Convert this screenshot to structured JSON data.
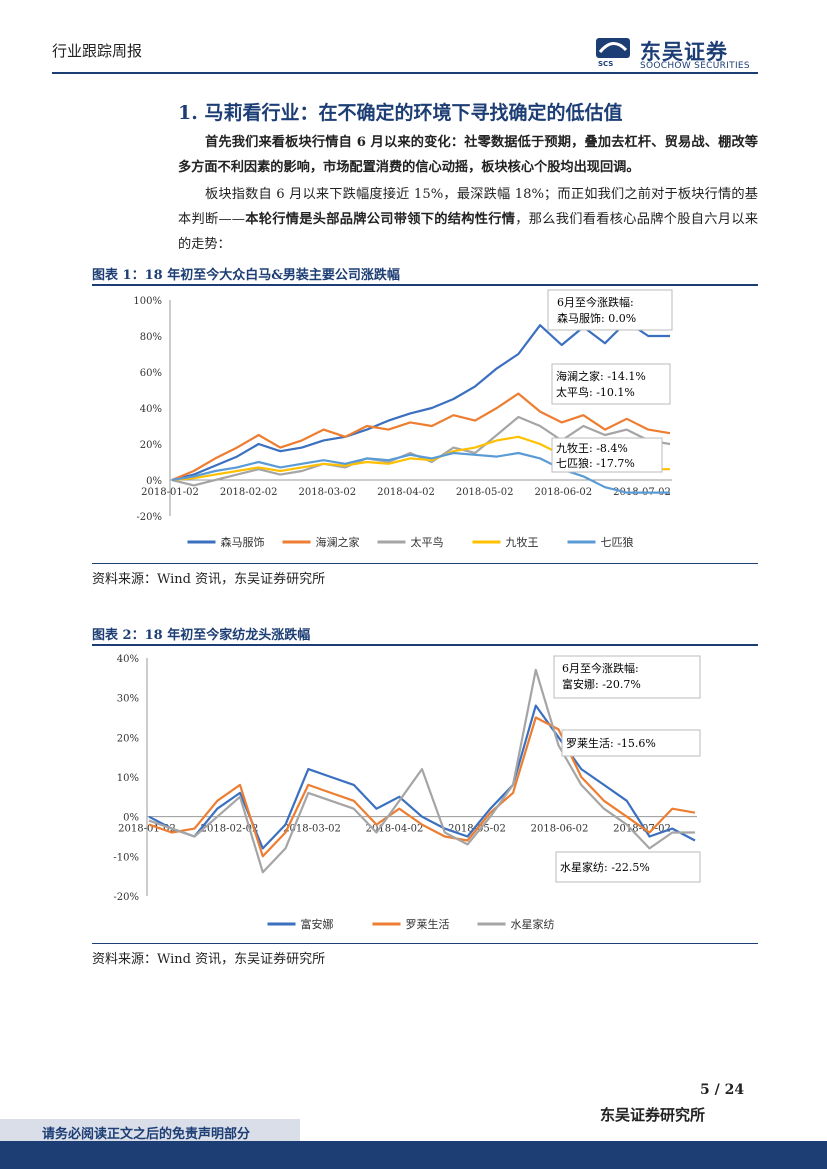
{
  "header": {
    "title": "行业跟踪周报",
    "logo_cn": "东吴证券",
    "logo_en": "SOOCHOW SECURITIES",
    "logo_abbr": "SCS"
  },
  "section": {
    "title": "1.  马莉看行业：在不确定的环境下寻找确定的低估值"
  },
  "paragraphs": {
    "p1": "首先我们来看板块行情自 6 月以来的变化：社零数据低于预期，叠加去杠杆、贸易战、棚改等多方面不利因素的影响，市场配置消费的信心动摇，板块核心个股均出现回调。",
    "p2_a": "板块指数自 6 月以来下跌幅度接近 15%，最深跌幅 18%；而正如我们之前对于板块行情的基本判断——",
    "p2_b": "本轮行情是头部品牌公司带领下的结构性行情",
    "p2_c": "，那么我们看看核心品牌个股自六月以来的走势："
  },
  "figure1": {
    "title": "图表 1：18 年初至今大众白马&男装主要公司涨跌幅",
    "source": "资料来源：Wind 资讯，东吴证券研究所",
    "annotations": {
      "box1_l1": "6月至今涨跌幅:",
      "box1_l2": "森马服饰:  0.0%",
      "box2_l1": "海澜之家:  -14.1%",
      "box2_l2": "太平鸟:  -10.1%",
      "box3_l1": "九牧王:  -8.4%",
      "box3_l2": "七匹狼:  -17.7%"
    }
  },
  "figure2": {
    "title": "图表 2：18 年初至今家纺龙头涨跌幅",
    "source": "资料来源：Wind 资讯，东吴证券研究所",
    "annotations": {
      "box1_l1": "6月至今涨跌幅:",
      "box1_l2": "富安娜:  -20.7%",
      "box2_l1": "罗莱生活:  -15.6%",
      "box3_l1": "水星家纺:  -22.5%"
    }
  },
  "chart_data": [
    {
      "type": "line",
      "x_ticks": [
        "2018-01-02",
        "2018-02-02",
        "2018-03-02",
        "2018-04-02",
        "2018-05-02",
        "2018-06-02",
        "2018-07-02"
      ],
      "y_ticks": [
        "100%",
        "80%",
        "60%",
        "40%",
        "20%",
        "0%",
        "-20%"
      ],
      "ylim": [
        -20,
        100
      ],
      "series": [
        {
          "name": "森马服饰",
          "color": "#3b6fbf",
          "values": [
            0,
            3,
            8,
            13,
            20,
            16,
            18,
            22,
            24,
            28,
            33,
            37,
            40,
            45,
            52,
            62,
            70,
            86,
            75,
            85,
            76,
            88,
            80,
            80
          ]
        },
        {
          "name": "海澜之家",
          "color": "#ed7d31",
          "values": [
            0,
            5,
            12,
            18,
            25,
            18,
            22,
            28,
            24,
            30,
            28,
            32,
            30,
            36,
            33,
            40,
            48,
            38,
            32,
            36,
            28,
            34,
            28,
            26
          ]
        },
        {
          "name": "太平鸟",
          "color": "#a5a5a5",
          "values": [
            0,
            -3,
            0,
            3,
            6,
            3,
            5,
            9,
            7,
            12,
            10,
            15,
            10,
            18,
            15,
            25,
            35,
            30,
            22,
            30,
            25,
            28,
            22,
            20
          ]
        },
        {
          "name": "九牧王",
          "color": "#ffc000",
          "values": [
            0,
            1,
            3,
            5,
            7,
            5,
            7,
            9,
            8,
            10,
            9,
            12,
            11,
            16,
            18,
            22,
            24,
            20,
            14,
            12,
            8,
            7,
            6,
            6
          ]
        },
        {
          "name": "七匹狼",
          "color": "#5b9bd5",
          "values": [
            0,
            2,
            5,
            7,
            10,
            7,
            9,
            11,
            9,
            12,
            11,
            14,
            12,
            15,
            14,
            13,
            15,
            12,
            6,
            2,
            -4,
            -7,
            -7,
            -7
          ]
        }
      ]
    },
    {
      "type": "line",
      "x_ticks": [
        "2018-01-02",
        "2018-02-02",
        "2018-03-02",
        "2018-04-02",
        "2018-05-02",
        "2018-06-02",
        "2018-07-02"
      ],
      "y_ticks": [
        "40%",
        "30%",
        "20%",
        "10%",
        "0%",
        "-10%",
        "-20%"
      ],
      "ylim": [
        -20,
        40
      ],
      "series": [
        {
          "name": "富安娜",
          "color": "#3b6fbf",
          "values": [
            0,
            -3,
            -5,
            2,
            6,
            -8,
            -2,
            12,
            10,
            8,
            2,
            5,
            0,
            -3,
            -5,
            2,
            8,
            28,
            20,
            12,
            8,
            4,
            -5,
            -3,
            -6
          ]
        },
        {
          "name": "罗莱生活",
          "color": "#ed7d31",
          "values": [
            -2,
            -4,
            -3,
            4,
            8,
            -10,
            -4,
            8,
            6,
            4,
            -2,
            2,
            -2,
            -5,
            -6,
            1,
            6,
            25,
            22,
            10,
            4,
            0,
            -4,
            2,
            1
          ]
        },
        {
          "name": "水星家纺",
          "color": "#a5a5a5",
          "values": [
            -1,
            -3,
            -5,
            0,
            5,
            -14,
            -8,
            6,
            4,
            2,
            -4,
            4,
            12,
            -4,
            -7,
            0,
            8,
            37,
            18,
            8,
            2,
            -2,
            -8,
            -4,
            -4
          ]
        }
      ]
    }
  ],
  "footer": {
    "page": "5 / 24",
    "org": "东吴证券研究所",
    "disclaimer": "请务必阅读正文之后的免责声明部分"
  }
}
